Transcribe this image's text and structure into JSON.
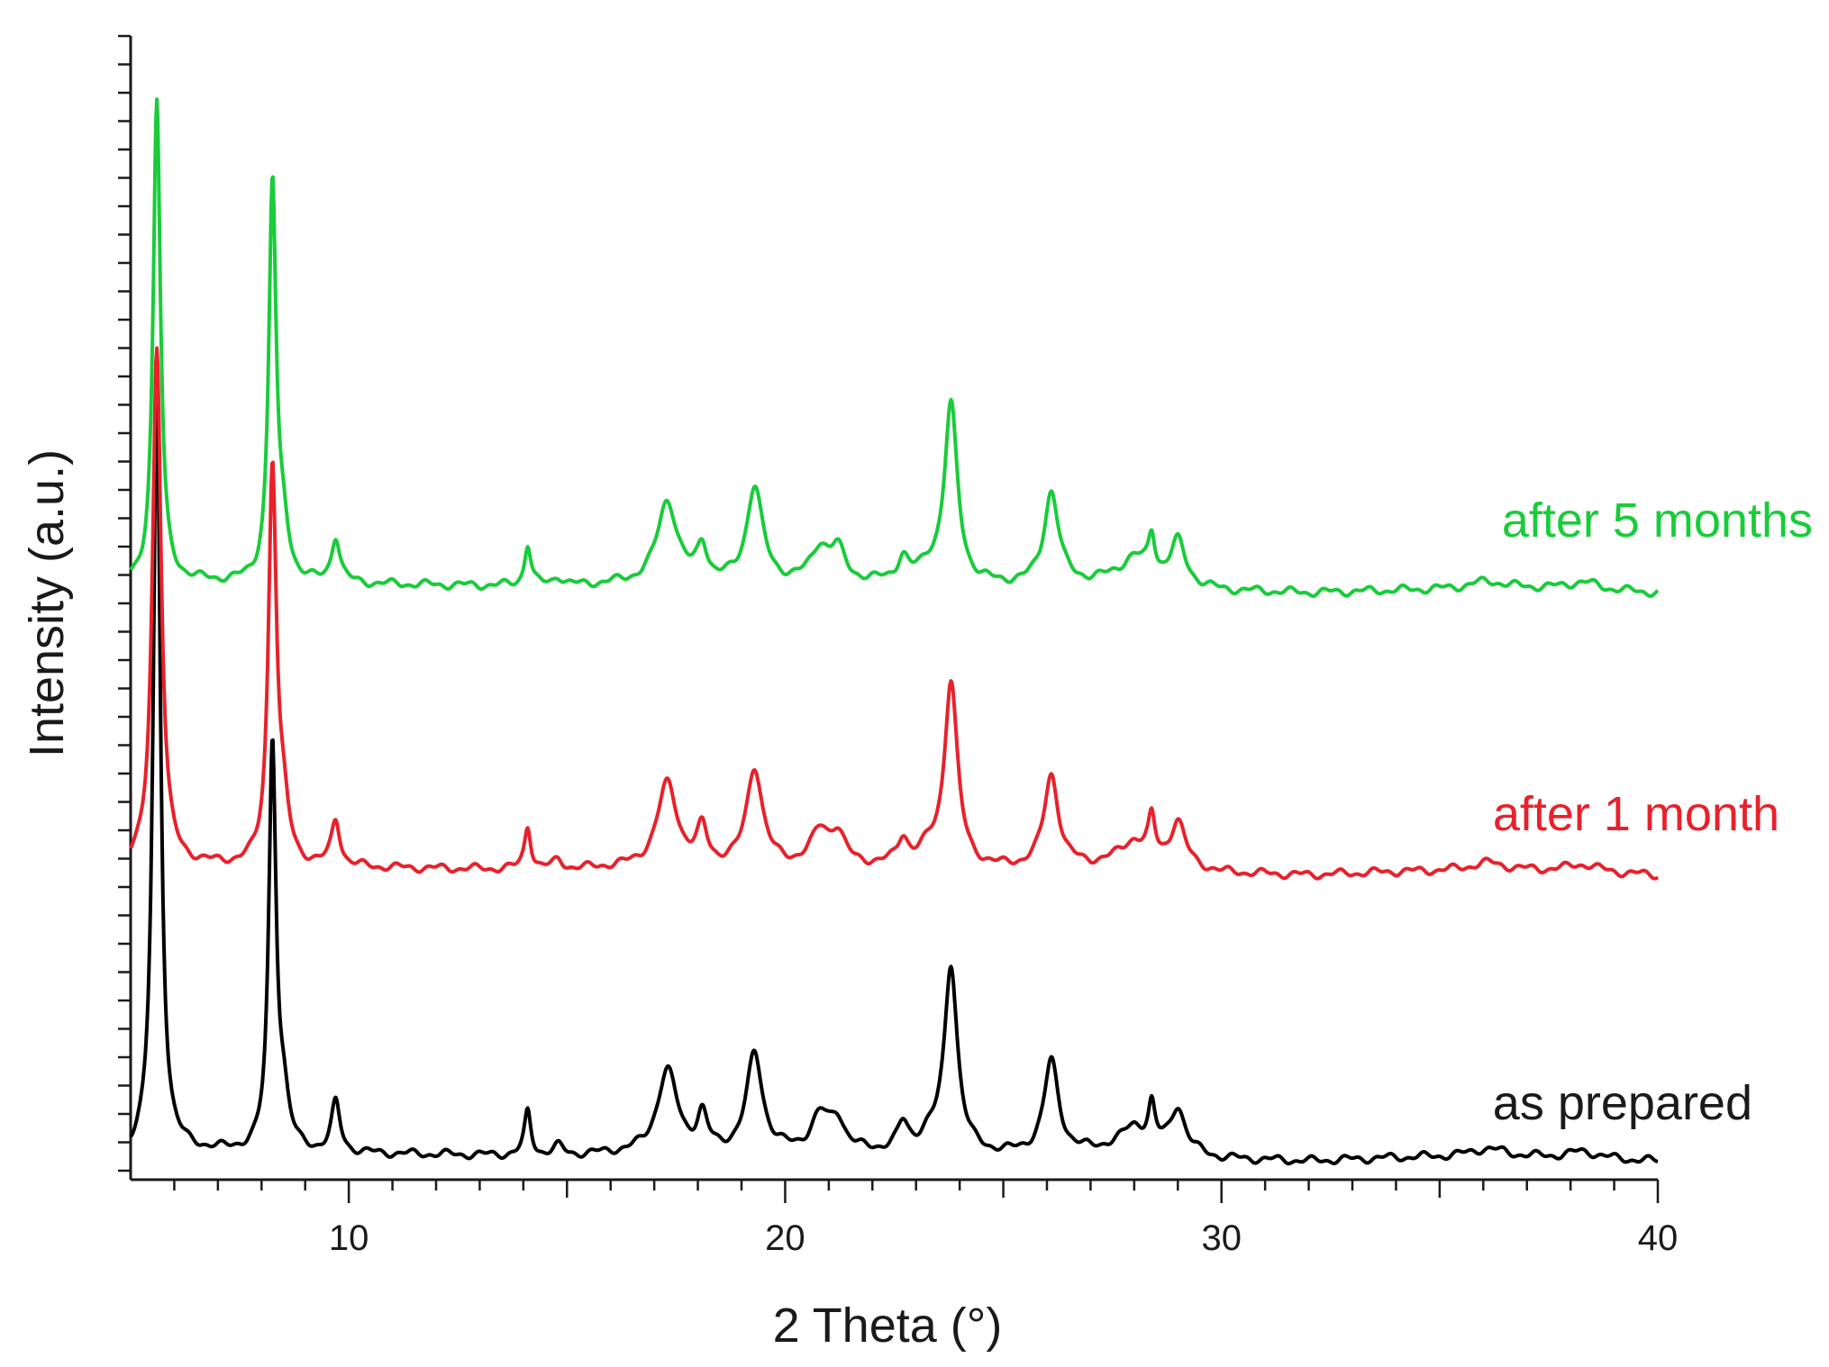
{
  "chart_data": {
    "type": "line",
    "title": "",
    "xlabel": "2 Theta (°)",
    "ylabel": "Intensity (a.u.)",
    "xlim": [
      5,
      40
    ],
    "ylim": [
      0,
      100
    ],
    "x_ticks": [
      10,
      20,
      30,
      40
    ],
    "x_tick_labels": [
      "10",
      "20",
      "30",
      "40"
    ],
    "y_tick_labels_shown": false,
    "grid": false,
    "legend": "inline labels at right",
    "series": [
      {
        "name": "as prepared",
        "color": "#000000",
        "baseline": 2.2,
        "points": [
          [
            5,
            2.2
          ],
          [
            6,
            2.5
          ],
          [
            7,
            2.4
          ],
          [
            9,
            2.3
          ],
          [
            11,
            2.2
          ],
          [
            13,
            2.1
          ],
          [
            15,
            2.0
          ],
          [
            16,
            2.2
          ],
          [
            22,
            2.3
          ],
          [
            25,
            2.1
          ],
          [
            27,
            2.4
          ],
          [
            28,
            3.0
          ],
          [
            30,
            1.8
          ],
          [
            32,
            1.6
          ],
          [
            34,
            1.9
          ],
          [
            36,
            2.0
          ],
          [
            38,
            1.9
          ],
          [
            40,
            1.6
          ]
        ],
        "peaks": [
          {
            "x": 5.6,
            "height": 67.2,
            "width": 0.1
          },
          {
            "x": 8.25,
            "height": 35.3,
            "width": 0.1
          },
          {
            "x": 8.5,
            "height": 4.0,
            "width": 0.15
          },
          {
            "x": 9.7,
            "height": 4.3,
            "width": 0.12
          },
          {
            "x": 14.1,
            "height": 3.8,
            "width": 0.09
          },
          {
            "x": 14.8,
            "height": 0.8,
            "width": 0.15
          },
          {
            "x": 17.3,
            "height": 7.2,
            "width": 0.28
          },
          {
            "x": 18.1,
            "height": 3.0,
            "width": 0.14
          },
          {
            "x": 19.3,
            "height": 8.6,
            "width": 0.22
          },
          {
            "x": 20.8,
            "height": 3.0,
            "width": 0.25
          },
          {
            "x": 21.2,
            "height": 2.6,
            "width": 0.2
          },
          {
            "x": 22.7,
            "height": 2.2,
            "width": 0.15
          },
          {
            "x": 23.3,
            "height": 1.2,
            "width": 0.3
          },
          {
            "x": 23.8,
            "height": 16.3,
            "width": 0.18
          },
          {
            "x": 26.1,
            "height": 8.0,
            "width": 0.2
          },
          {
            "x": 28.0,
            "height": 1.5,
            "width": 0.35
          },
          {
            "x": 28.4,
            "height": 3.3,
            "width": 0.09
          },
          {
            "x": 29.0,
            "height": 3.8,
            "width": 0.2
          },
          {
            "x": 36.1,
            "height": 0.7,
            "width": 0.5
          },
          {
            "x": 38.3,
            "height": 0.6,
            "width": 0.4
          }
        ]
      },
      {
        "name": "after 1 month",
        "color": "#e8212b",
        "baseline": 27.2,
        "points": [
          [
            5,
            27.2
          ],
          [
            6,
            27.5
          ],
          [
            7,
            27.4
          ],
          [
            9,
            27.3
          ],
          [
            11,
            27.2
          ],
          [
            13,
            27.1
          ],
          [
            15,
            27.0
          ],
          [
            16,
            27.2
          ],
          [
            22,
            27.3
          ],
          [
            25,
            27.1
          ],
          [
            27,
            27.4
          ],
          [
            28,
            28.0
          ],
          [
            30,
            26.8
          ],
          [
            32,
            26.6
          ],
          [
            34,
            26.9
          ],
          [
            36,
            27.0
          ],
          [
            38,
            27.0
          ],
          [
            40,
            26.6
          ]
        ],
        "peaks": [
          {
            "x": 5.6,
            "height": 45.4,
            "width": 0.12
          },
          {
            "x": 8.25,
            "height": 34.7,
            "width": 0.11
          },
          {
            "x": 8.5,
            "height": 4.0,
            "width": 0.15
          },
          {
            "x": 9.7,
            "height": 4.0,
            "width": 0.12
          },
          {
            "x": 14.1,
            "height": 3.8,
            "width": 0.09
          },
          {
            "x": 14.8,
            "height": 0.8,
            "width": 0.15
          },
          {
            "x": 17.3,
            "height": 7.3,
            "width": 0.28
          },
          {
            "x": 18.1,
            "height": 3.0,
            "width": 0.14
          },
          {
            "x": 19.3,
            "height": 8.6,
            "width": 0.22
          },
          {
            "x": 20.8,
            "height": 2.9,
            "width": 0.25
          },
          {
            "x": 21.2,
            "height": 2.6,
            "width": 0.2
          },
          {
            "x": 22.7,
            "height": 2.2,
            "width": 0.15
          },
          {
            "x": 23.3,
            "height": 1.2,
            "width": 0.3
          },
          {
            "x": 23.8,
            "height": 16.1,
            "width": 0.18
          },
          {
            "x": 26.1,
            "height": 8.0,
            "width": 0.2
          },
          {
            "x": 28.0,
            "height": 1.5,
            "width": 0.35
          },
          {
            "x": 28.4,
            "height": 3.3,
            "width": 0.09
          },
          {
            "x": 29.0,
            "height": 3.8,
            "width": 0.2
          },
          {
            "x": 36.1,
            "height": 0.7,
            "width": 0.5
          },
          {
            "x": 38.3,
            "height": 0.6,
            "width": 0.4
          }
        ]
      },
      {
        "name": "after 5 months",
        "color": "#19cc3a",
        "baseline": 52.0,
        "points": [
          [
            5,
            52.0
          ],
          [
            6,
            52.3
          ],
          [
            7,
            52.2
          ],
          [
            9,
            52.1
          ],
          [
            11,
            52.0
          ],
          [
            13,
            51.9
          ],
          [
            15,
            51.8
          ],
          [
            16,
            52.0
          ],
          [
            22,
            52.1
          ],
          [
            25,
            51.9
          ],
          [
            27,
            52.2
          ],
          [
            28,
            52.8
          ],
          [
            30,
            51.5
          ],
          [
            32,
            51.3
          ],
          [
            34,
            51.5
          ],
          [
            36,
            51.7
          ],
          [
            38,
            51.7
          ],
          [
            40,
            51.3
          ]
        ],
        "peaks": [
          {
            "x": 5.6,
            "height": 42.2,
            "width": 0.1
          },
          {
            "x": 8.25,
            "height": 34.6,
            "width": 0.1
          },
          {
            "x": 8.5,
            "height": 4.0,
            "width": 0.15
          },
          {
            "x": 9.7,
            "height": 4.0,
            "width": 0.12
          },
          {
            "x": 14.1,
            "height": 3.6,
            "width": 0.09
          },
          {
            "x": 14.8,
            "height": 0.8,
            "width": 0.15
          },
          {
            "x": 17.3,
            "height": 7.2,
            "width": 0.28
          },
          {
            "x": 18.1,
            "height": 3.0,
            "width": 0.14
          },
          {
            "x": 19.3,
            "height": 8.4,
            "width": 0.22
          },
          {
            "x": 20.8,
            "height": 2.9,
            "width": 0.25
          },
          {
            "x": 21.2,
            "height": 2.6,
            "width": 0.2
          },
          {
            "x": 22.7,
            "height": 2.0,
            "width": 0.15
          },
          {
            "x": 23.3,
            "height": 1.2,
            "width": 0.3
          },
          {
            "x": 23.8,
            "height": 15.4,
            "width": 0.18
          },
          {
            "x": 26.1,
            "height": 8.0,
            "width": 0.2
          },
          {
            "x": 28.0,
            "height": 1.5,
            "width": 0.35
          },
          {
            "x": 28.4,
            "height": 3.3,
            "width": 0.09
          },
          {
            "x": 29.0,
            "height": 3.6,
            "width": 0.2
          },
          {
            "x": 36.1,
            "height": 0.6,
            "width": 0.5
          },
          {
            "x": 38.3,
            "height": 0.6,
            "width": 0.4
          }
        ]
      }
    ]
  }
}
